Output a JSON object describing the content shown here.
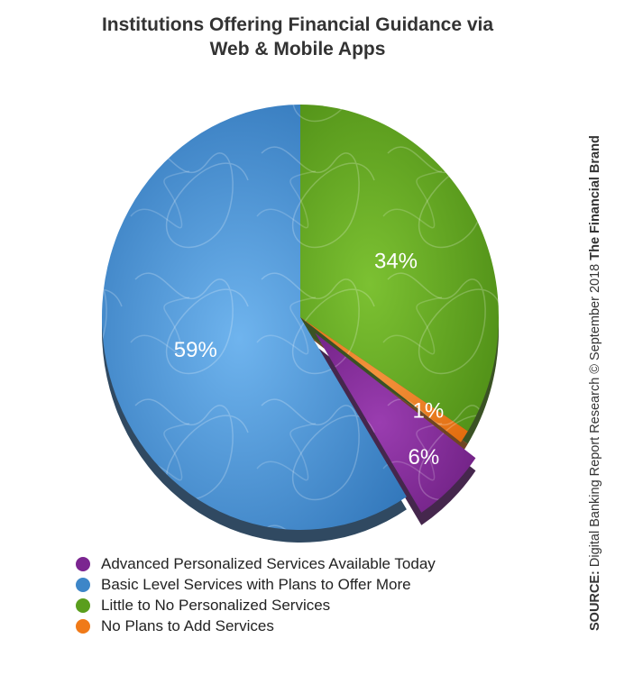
{
  "title": {
    "line1": "Institutions Offering Financial Guidance via",
    "line2": "Web & Mobile Apps"
  },
  "source": {
    "label": "SOURCE:",
    "text": "Digital Banking Report Research © September 2018",
    "brand": "The Financial Brand"
  },
  "chart_data": {
    "type": "pie",
    "title": "Institutions Offering Financial Guidance via Web & Mobile Apps",
    "slices": [
      {
        "name": "Advanced Personalized Services Available Today",
        "value": 6,
        "label": "6%",
        "color": "#7b2590",
        "exploded": true
      },
      {
        "name": "Basic Level Services with Plans to Offer More",
        "value": 59,
        "label": "59%",
        "color": "#3d86c8",
        "exploded": false
      },
      {
        "name": "Little to No Personalized Services",
        "value": 34,
        "label": "34%",
        "color": "#5a9e1d",
        "exploded": false
      },
      {
        "name": "No Plans to Add Services",
        "value": 1,
        "label": "1%",
        "color": "#f07a18",
        "exploded": false
      }
    ],
    "legend_position": "bottom-left"
  }
}
